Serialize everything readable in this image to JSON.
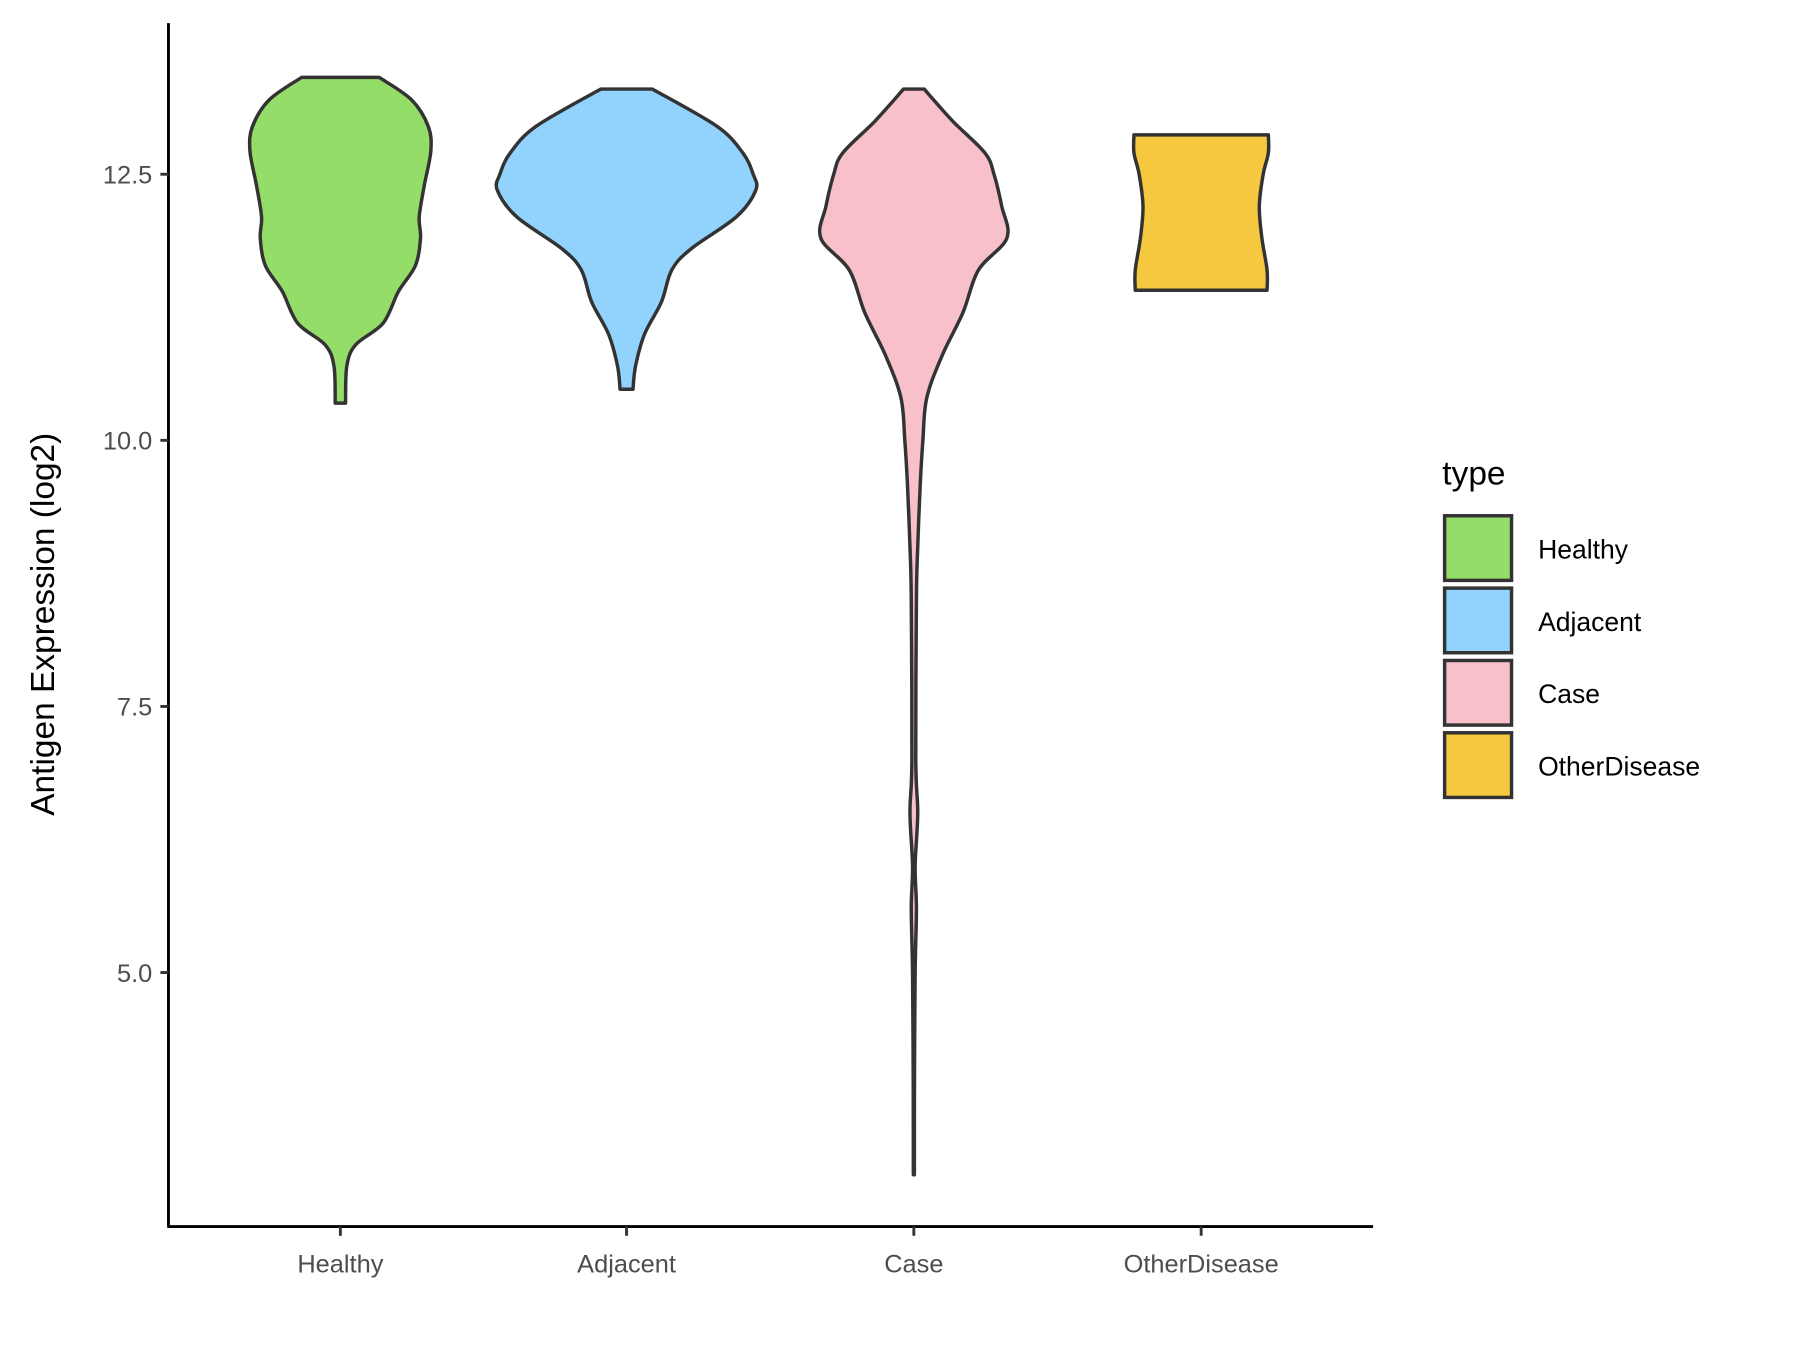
{
  "chart_data": {
    "type": "violin",
    "title": "",
    "xlabel": "",
    "ylabel": "Antigen Expression (log2)",
    "ylim": [
      2.7,
      14.2
    ],
    "yticks": [
      5.0,
      7.5,
      10.0,
      12.5
    ],
    "ytick_labels": [
      "5.0",
      "7.5",
      "10.0",
      "12.5"
    ],
    "categories": [
      "Healthy",
      "Adjacent",
      "Case",
      "OtherDisease"
    ],
    "legend": {
      "title": "type",
      "position": "right",
      "entries": [
        "Healthy",
        "Adjacent",
        "Case",
        "OtherDisease"
      ]
    },
    "grid": false,
    "series": [
      {
        "name": "Healthy",
        "color": "#95dd69",
        "min": 10.35,
        "max": 13.41,
        "density_profile": [
          [
            13.41,
            0.3
          ],
          [
            13.2,
            0.55
          ],
          [
            12.95,
            0.68
          ],
          [
            12.72,
            0.7
          ],
          [
            12.4,
            0.65
          ],
          [
            12.1,
            0.61
          ],
          [
            11.9,
            0.62
          ],
          [
            11.64,
            0.58
          ],
          [
            11.4,
            0.45
          ],
          [
            11.1,
            0.33
          ],
          [
            10.9,
            0.12
          ],
          [
            10.7,
            0.05
          ],
          [
            10.35,
            0.04
          ]
        ]
      },
      {
        "name": "Adjacent",
        "color": "#92d3fe",
        "min": 10.48,
        "max": 13.3,
        "density_profile": [
          [
            13.3,
            0.2
          ],
          [
            12.95,
            0.7
          ],
          [
            12.7,
            0.9
          ],
          [
            12.5,
            0.98
          ],
          [
            12.35,
            1.0
          ],
          [
            12.1,
            0.85
          ],
          [
            11.8,
            0.5
          ],
          [
            11.6,
            0.35
          ],
          [
            11.3,
            0.27
          ],
          [
            11.0,
            0.14
          ],
          [
            10.7,
            0.07
          ],
          [
            10.48,
            0.05
          ]
        ]
      },
      {
        "name": "Case",
        "color": "#f7c0ca",
        "min": 3.1,
        "max": 13.3,
        "density_profile": [
          [
            13.3,
            0.08
          ],
          [
            13.0,
            0.3
          ],
          [
            12.7,
            0.55
          ],
          [
            12.5,
            0.62
          ],
          [
            12.2,
            0.68
          ],
          [
            11.9,
            0.72
          ],
          [
            11.6,
            0.5
          ],
          [
            11.2,
            0.38
          ],
          [
            10.8,
            0.22
          ],
          [
            10.4,
            0.1
          ],
          [
            10.0,
            0.07
          ],
          [
            9.6,
            0.05
          ],
          [
            9.0,
            0.03
          ],
          [
            8.5,
            0.02
          ],
          [
            7.0,
            0.015
          ],
          [
            6.5,
            0.03
          ],
          [
            6.0,
            0.01
          ],
          [
            5.6,
            0.02
          ],
          [
            5.0,
            0.01
          ],
          [
            4.0,
            0.005
          ],
          [
            3.1,
            0.004
          ]
        ]
      },
      {
        "name": "OtherDisease",
        "color": "#f6c840",
        "min": 11.41,
        "max": 12.87,
        "density_profile": [
          [
            12.87,
            0.52
          ],
          [
            12.7,
            0.52
          ],
          [
            12.5,
            0.48
          ],
          [
            12.2,
            0.45
          ],
          [
            11.9,
            0.47
          ],
          [
            11.6,
            0.51
          ],
          [
            11.41,
            0.51
          ]
        ]
      }
    ]
  }
}
